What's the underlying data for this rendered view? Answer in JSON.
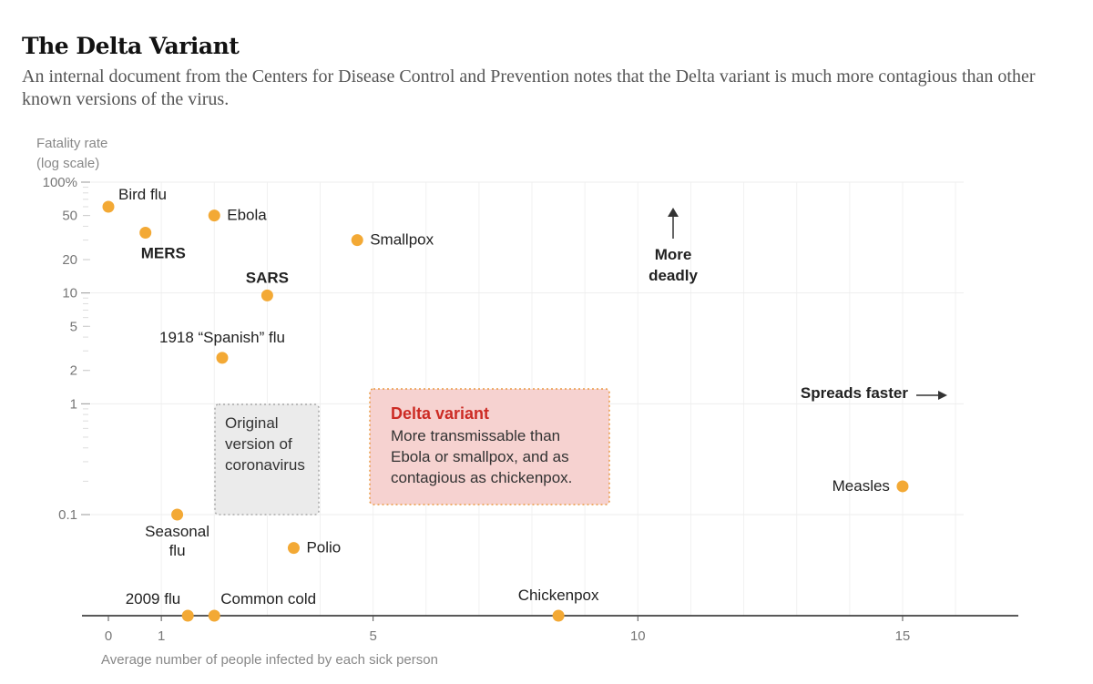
{
  "header": {
    "title": "The Delta Variant",
    "subtitle": "An internal document from the Centers for Disease Control and Prevention notes that the Delta variant is much more contagious than other known versions of the virus."
  },
  "chart_data": {
    "type": "scatter",
    "title": "The Delta Variant",
    "ylabel_lines": [
      "Fatality rate",
      "(log scale)"
    ],
    "xlabel": "Average number of people infected by each sick person",
    "x_scale": "linear",
    "y_scale": "log",
    "xlim": [
      -0.5,
      17.2
    ],
    "ylim_log10": [
      -0.91,
      2.0
    ],
    "x_ticks": [
      0,
      1,
      5,
      10,
      15
    ],
    "y_ticks": [
      {
        "value": 100,
        "label": "100%"
      },
      {
        "value": 50,
        "label": "50"
      },
      {
        "value": 20,
        "label": "20"
      },
      {
        "value": 10,
        "label": "10"
      },
      {
        "value": 5,
        "label": "5"
      },
      {
        "value": 2,
        "label": "2"
      },
      {
        "value": 1,
        "label": "1"
      },
      {
        "value": 0.1,
        "label": "0.1"
      }
    ],
    "point_color": "#f3a935",
    "points": [
      {
        "name": "Bird flu",
        "x": 0,
        "y": 60,
        "bold": false
      },
      {
        "name": "MERS",
        "x": 0.7,
        "y": 35,
        "bold": true
      },
      {
        "name": "Ebola",
        "x": 2.0,
        "y": 50,
        "bold": false
      },
      {
        "name": "Smallpox",
        "x": 4.7,
        "y": 30,
        "bold": false
      },
      {
        "name": "SARS",
        "x": 3.0,
        "y": 9.5,
        "bold": true
      },
      {
        "name": "1918 “Spanish” flu",
        "x": 2.15,
        "y": 2.6,
        "bold": false
      },
      {
        "name": "Seasonal flu",
        "x": 1.3,
        "y": 0.1,
        "bold": false
      },
      {
        "name": "Polio",
        "x": 3.5,
        "y": 0.05,
        "bold": false
      },
      {
        "name": "2009 flu",
        "x": 1.5,
        "y": null,
        "bold": false
      },
      {
        "name": "Common cold",
        "x": 2.0,
        "y": null,
        "bold": false
      },
      {
        "name": "Chickenpox",
        "x": 8.5,
        "y": null,
        "bold": false
      },
      {
        "name": "Measles",
        "x": 15,
        "y": 0.18,
        "bold": false
      }
    ],
    "annotations": {
      "more_deadly": [
        "More",
        "deadly"
      ],
      "spreads_faster": "Spreads faster",
      "original_box": [
        "Original",
        "version of",
        "coronavirus"
      ],
      "delta_box": {
        "title": "Delta variant",
        "lines": [
          "More transmissable than",
          "Ebola or smallpox, and as",
          "contagious as chickenpox."
        ]
      }
    }
  }
}
